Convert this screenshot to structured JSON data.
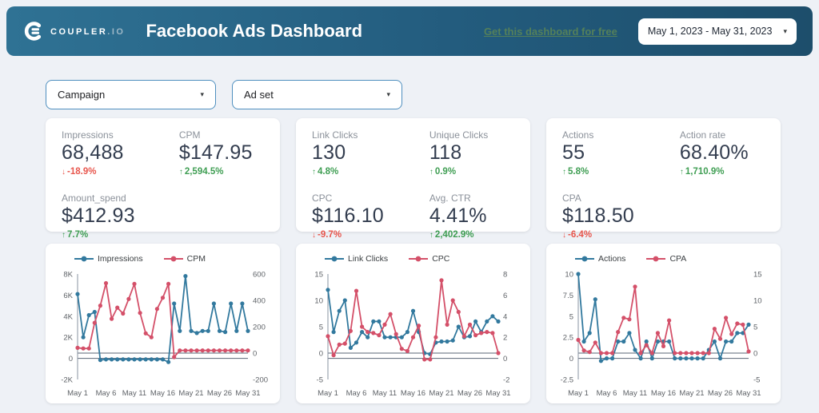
{
  "header": {
    "logo_text": "COUPLER",
    "logo_suffix": ".IO",
    "title": "Facebook Ads Dashboard",
    "link_label": "Get this dashboard for free",
    "date_range": "May 1, 2023 - May 31, 2023"
  },
  "filters": [
    {
      "label": "Campaign"
    },
    {
      "label": "Ad set"
    }
  ],
  "kpi_cards": [
    {
      "metrics": [
        {
          "label": "Impressions",
          "value": "68,488",
          "delta": "-18.9%",
          "direction": "down"
        },
        {
          "label": "CPM",
          "value": "$147.95",
          "delta": "2,594.5%",
          "direction": "up"
        },
        {
          "label": "Amount_spend",
          "value": "$412.93",
          "delta": "7.7%",
          "direction": "up"
        }
      ]
    },
    {
      "metrics": [
        {
          "label": "Link Clicks",
          "value": "130",
          "delta": "4.8%",
          "direction": "up"
        },
        {
          "label": "Unique Clicks",
          "value": "118",
          "delta": "0.9%",
          "direction": "up"
        },
        {
          "label": "CPC",
          "value": "$116.10",
          "delta": "-9.7%",
          "direction": "down"
        },
        {
          "label": "Avg. CTR",
          "value": "4.41%",
          "delta": "2,402.9%",
          "direction": "up"
        }
      ]
    },
    {
      "metrics": [
        {
          "label": "Actions",
          "value": "55",
          "delta": "5.8%",
          "direction": "up"
        },
        {
          "label": "Action rate",
          "value": "68.40%",
          "delta": "1,710.9%",
          "direction": "up"
        },
        {
          "label": "CPA",
          "value": "$118.50",
          "delta": "-6.4%",
          "direction": "down"
        }
      ]
    }
  ],
  "colors": {
    "header_gradient_start": "#2f7294",
    "header_gradient_end": "#1d4e6b",
    "page_bg": "#eef1f6",
    "card_bg": "#ffffff",
    "series_blue": "#32799e",
    "series_red": "#d45069",
    "positive": "#3f9e53",
    "negative": "#e8564d",
    "link_green": "#54805a",
    "dropdown_border": "#4f8fbf",
    "axis_line": "#5a6474",
    "tick_text": "#5f6368"
  },
  "chart_data": [
    {
      "type": "line",
      "title": "Impressions vs CPM",
      "days": 31,
      "legend_position": "top",
      "grid": false,
      "x_ticks": [
        [
          1,
          "May 1"
        ],
        [
          6,
          "May 6"
        ],
        [
          11,
          "May 11"
        ],
        [
          16,
          "May 16"
        ],
        [
          21,
          "May 21"
        ],
        [
          26,
          "May 26"
        ],
        [
          31,
          "May 31"
        ]
      ],
      "left_axis": {
        "min": -2000,
        "max": 8000,
        "ticks": [
          [
            -2000,
            "-2K"
          ],
          [
            0,
            "0"
          ],
          [
            2000,
            "2K"
          ],
          [
            4000,
            "4K"
          ],
          [
            6000,
            "6K"
          ],
          [
            8000,
            "8K"
          ]
        ]
      },
      "right_axis": {
        "min": -200,
        "max": 600,
        "ticks": [
          [
            -200,
            "-200"
          ],
          [
            0,
            "0"
          ],
          [
            200,
            "200"
          ],
          [
            400,
            "400"
          ],
          [
            600,
            "600"
          ]
        ]
      },
      "series": [
        {
          "name": "Impressions",
          "axis": "left",
          "color": "#32799e",
          "values": [
            6100,
            2000,
            4100,
            4400,
            -150,
            -100,
            -100,
            -100,
            -100,
            -100,
            -100,
            -100,
            -100,
            -100,
            -100,
            -100,
            -350,
            5200,
            2600,
            7800,
            2600,
            2400,
            2600,
            2600,
            5200,
            2600,
            2500,
            5200,
            2600,
            5200,
            2600
          ]
        },
        {
          "name": "CPM",
          "axis": "right",
          "color": "#d45069",
          "values": [
            40,
            35,
            35,
            230,
            360,
            530,
            260,
            345,
            300,
            410,
            525,
            305,
            150,
            120,
            335,
            420,
            525,
            -30,
            20,
            20,
            20,
            20,
            20,
            20,
            20,
            20,
            20,
            20,
            20,
            20,
            20
          ]
        }
      ]
    },
    {
      "type": "line",
      "title": "Link Clicks vs CPC",
      "days": 31,
      "legend_position": "top",
      "grid": false,
      "x_ticks": [
        [
          1,
          "May 1"
        ],
        [
          6,
          "May 6"
        ],
        [
          11,
          "May 11"
        ],
        [
          16,
          "May 16"
        ],
        [
          21,
          "May 21"
        ],
        [
          26,
          "May 26"
        ],
        [
          31,
          "May 31"
        ]
      ],
      "left_axis": {
        "min": -5,
        "max": 15,
        "ticks": [
          [
            -5,
            "-5"
          ],
          [
            0,
            "0"
          ],
          [
            5,
            "5"
          ],
          [
            10,
            "10"
          ],
          [
            15,
            "15"
          ]
        ]
      },
      "right_axis": {
        "min": -2,
        "max": 8,
        "ticks": [
          [
            -2,
            "-2"
          ],
          [
            0,
            "0"
          ],
          [
            2,
            "2"
          ],
          [
            4,
            "4"
          ],
          [
            6,
            "6"
          ],
          [
            8,
            "8"
          ]
        ]
      },
      "series": [
        {
          "name": "Link Clicks",
          "axis": "left",
          "color": "#32799e",
          "values": [
            12,
            4,
            8,
            10,
            1,
            2,
            4,
            3,
            6,
            6,
            3,
            3,
            3,
            3,
            4,
            8,
            4,
            0,
            -0.2,
            2,
            2.2,
            2.2,
            2.4,
            5,
            3,
            3.2,
            6,
            4,
            6,
            7,
            6
          ]
        },
        {
          "name": "CPC",
          "axis": "right",
          "color": "#d45069",
          "values": [
            2.1,
            0.3,
            1.3,
            1.4,
            2.6,
            6.4,
            3,
            2.5,
            2.4,
            2.2,
            3.2,
            4.2,
            2.3,
            0.9,
            0.7,
            2,
            3.1,
            -0.1,
            -0.1,
            2,
            7.4,
            3.2,
            5.5,
            4.4,
            2.1,
            3.2,
            2.2,
            2.4,
            2.5,
            2.4,
            0.5
          ]
        }
      ]
    },
    {
      "type": "line",
      "title": "Actions vs CPA",
      "days": 31,
      "legend_position": "top",
      "grid": false,
      "x_ticks": [
        [
          1,
          "May 1"
        ],
        [
          6,
          "May 6"
        ],
        [
          11,
          "May 11"
        ],
        [
          16,
          "May 16"
        ],
        [
          21,
          "May 21"
        ],
        [
          26,
          "May 26"
        ],
        [
          31,
          "May 31"
        ]
      ],
      "left_axis": {
        "min": -2.5,
        "max": 10,
        "ticks": [
          [
            -2.5,
            "-2.5"
          ],
          [
            0,
            "0"
          ],
          [
            2.5,
            "2.5"
          ],
          [
            5,
            "5"
          ],
          [
            7.5,
            "7.5"
          ],
          [
            10,
            "10"
          ]
        ]
      },
      "right_axis": {
        "min": -5,
        "max": 15,
        "ticks": [
          [
            -5,
            "-5"
          ],
          [
            0,
            "0"
          ],
          [
            5,
            "5"
          ],
          [
            10,
            "10"
          ],
          [
            15,
            "15"
          ]
        ]
      },
      "series": [
        {
          "name": "Actions",
          "axis": "left",
          "color": "#32799e",
          "values": [
            10,
            2,
            3,
            7,
            -0.3,
            0,
            0,
            2,
            2,
            3,
            1,
            0,
            2,
            0,
            2,
            2,
            2,
            0,
            0,
            0,
            0,
            0,
            0,
            1,
            2,
            0,
            2,
            2,
            3,
            3,
            4
          ]
        },
        {
          "name": "CPA",
          "axis": "right",
          "color": "#d45069",
          "values": [
            2.5,
            0.5,
            0.2,
            2,
            0,
            0,
            0,
            4,
            6.7,
            6.4,
            12.6,
            0,
            1.5,
            0,
            3.8,
            1.3,
            6.2,
            0,
            0,
            0,
            0,
            0,
            0,
            0,
            4.6,
            2.7,
            6.7,
            3.6,
            5.6,
            5.4,
            0.3
          ]
        }
      ]
    }
  ]
}
